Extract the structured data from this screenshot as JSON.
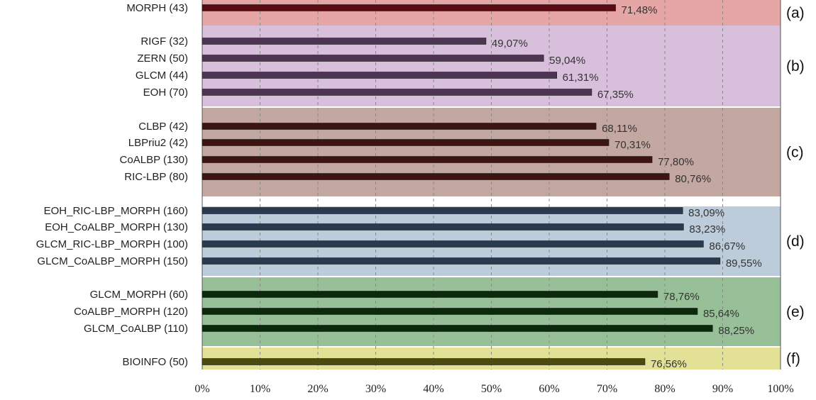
{
  "chart_data": {
    "type": "bar",
    "orientation": "horizontal",
    "xlim": [
      0,
      100
    ],
    "x_ticks": [
      "0%",
      "10%",
      "20%",
      "30%",
      "40%",
      "50%",
      "60%",
      "70%",
      "80%",
      "90%",
      "100%"
    ],
    "grid": "vertical dashed",
    "groups": [
      {
        "tag": "(a)",
        "band_color": "#e6a6a6",
        "bar_color": "#5a0a12",
        "bars": [
          {
            "label": "MORPH (43)",
            "value": 71.48,
            "value_label": "71,48%"
          }
        ]
      },
      {
        "tag": "(b)",
        "band_color": "#d8c0dc",
        "bar_color": "#4d3553",
        "bars": [
          {
            "label": "RIGF (32)",
            "value": 49.07,
            "value_label": "49,07%"
          },
          {
            "label": "ZERN (50)",
            "value": 59.04,
            "value_label": "59,04%"
          },
          {
            "label": "GLCM (44)",
            "value": 61.31,
            "value_label": "61,31%"
          },
          {
            "label": "EOH (70)",
            "value": 67.35,
            "value_label": "67,35%"
          }
        ]
      },
      {
        "tag": "(c)",
        "band_color": "#c3a7a1",
        "bar_color": "#3c1512",
        "bars": [
          {
            "label": "CLBP (42)",
            "value": 68.11,
            "value_label": "68,11%"
          },
          {
            "label": "LBPriu2 (42)",
            "value": 70.31,
            "value_label": "70,31%"
          },
          {
            "label": "CoALBP (130)",
            "value": 77.8,
            "value_label": "77,80%"
          },
          {
            "label": "RIC-LBP (80)",
            "value": 80.76,
            "value_label": "80,76%"
          }
        ]
      },
      {
        "tag": "(d)",
        "band_color": "#bdccda",
        "bar_color": "#2a3a4f",
        "bars": [
          {
            "label": "EOH_RIC-LBP_MORPH (160)",
            "value": 83.09,
            "value_label": "83,09%"
          },
          {
            "label": "EOH_CoALBP_MORPH (130)",
            "value": 83.23,
            "value_label": "83,23%"
          },
          {
            "label": "GLCM_RIC-LBP_MORPH (100)",
            "value": 86.67,
            "value_label": "86,67%"
          },
          {
            "label": "GLCM_CoALBP_MORPH (150)",
            "value": 89.55,
            "value_label": "89,55%"
          }
        ]
      },
      {
        "tag": "(e)",
        "band_color": "#98c098",
        "bar_color": "#0b2a0b",
        "bars": [
          {
            "label": "GLCM_MORPH (60)",
            "value": 78.76,
            "value_label": "78,76%"
          },
          {
            "label": "CoALBP_MORPH (120)",
            "value": 85.64,
            "value_label": "85,64%"
          },
          {
            "label": "GLCM_CoALBP (110)",
            "value": 88.25,
            "value_label": "88,25%"
          }
        ]
      },
      {
        "tag": "(f)",
        "band_color": "#e3e196",
        "bar_color": "#4d4a0f",
        "bars": [
          {
            "label": "BIOINFO (50)",
            "value": 76.56,
            "value_label": "76,56%"
          }
        ]
      }
    ]
  }
}
